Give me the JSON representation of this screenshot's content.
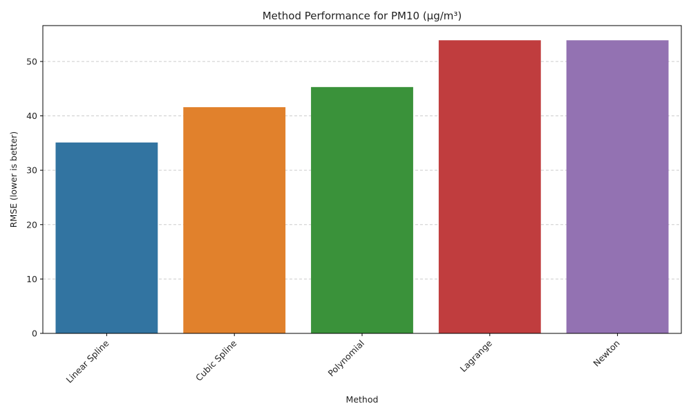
{
  "chart_data": {
    "type": "bar",
    "title": "Method Performance for PM10 (μg/m³)",
    "xlabel": "Method",
    "ylabel": "RMSE (lower is better)",
    "categories": [
      "Linear Spline",
      "Cubic Spline",
      "Polynomial",
      "Lagrange",
      "Newton"
    ],
    "values": [
      35.1,
      41.6,
      45.3,
      53.9,
      53.9
    ],
    "colors": [
      "#3274a1",
      "#e1812c",
      "#3a923a",
      "#c03d3e",
      "#9372b2"
    ],
    "ylim": [
      0,
      56.6
    ],
    "yticks": [
      0,
      10,
      20,
      30,
      40,
      50
    ],
    "grid": "y-dashed",
    "legend": "none"
  }
}
